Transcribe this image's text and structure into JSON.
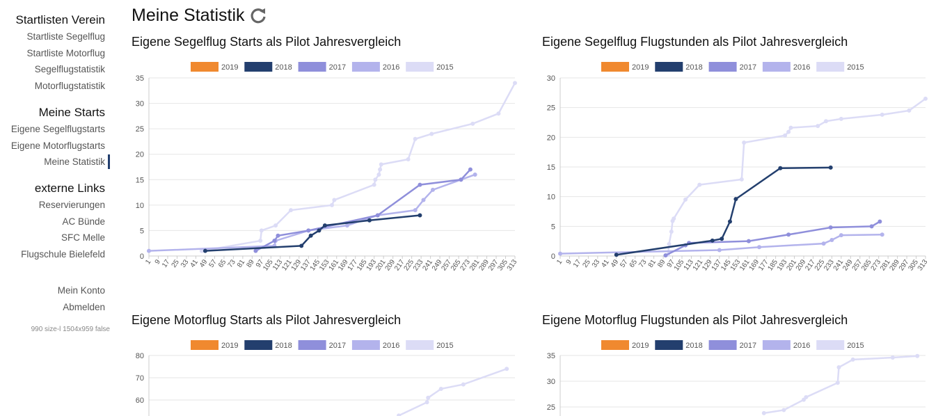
{
  "sidebar": {
    "sections": [
      {
        "heading": "Startlisten Verein",
        "links": [
          "Startliste Segelflug",
          "Startliste Motorflug",
          "Segelflugstatistik",
          "Motorflugstatistik"
        ]
      },
      {
        "heading": "Meine Starts",
        "links": [
          "Eigene Segelflugstarts",
          "Eigene Motorflugstarts",
          "Meine Statistik"
        ]
      },
      {
        "heading": "externe Links",
        "links": [
          "Reservierungen",
          "AC Bünde",
          "SFC Melle",
          "Flugschule Bielefeld"
        ]
      }
    ],
    "account_links": [
      "Mein Konto",
      "Abmelden"
    ],
    "footer": "990 size-l 1504x959 false"
  },
  "header": {
    "title": "Meine Statistik"
  },
  "chart_data": [
    {
      "type": "line",
      "title": "Eigene Segelflug Starts als Pilot Jahresvergleich",
      "grid": true,
      "xlim": [
        1,
        313
      ],
      "xticks": [
        1,
        9,
        17,
        25,
        33,
        41,
        49,
        57,
        65,
        73,
        81,
        89,
        97,
        105,
        113,
        121,
        129,
        137,
        145,
        153,
        161,
        169,
        177,
        185,
        193,
        201,
        209,
        217,
        225,
        233,
        241,
        249,
        257,
        265,
        273,
        281,
        289,
        297,
        305,
        313
      ],
      "ylim": [
        0,
        35
      ],
      "yticks": [
        0,
        5,
        10,
        15,
        20,
        25,
        30,
        35
      ],
      "series": [
        {
          "name": "2019",
          "color": "#f0892f",
          "x": [],
          "values": []
        },
        {
          "name": "2018",
          "color": "#233f6e",
          "x": [
            49,
            131,
            139,
            146,
            151,
            189,
            232
          ],
          "values": [
            1,
            2,
            4,
            5,
            6,
            7,
            8
          ]
        },
        {
          "name": "2017",
          "color": "#8f8fdb",
          "x": [
            92,
            108,
            111,
            137,
            196,
            232,
            267,
            275
          ],
          "values": [
            1,
            3,
            4,
            5,
            8,
            14,
            15,
            17
          ]
        },
        {
          "name": "2016",
          "color": "#b3b3ec",
          "x": [
            1,
            108,
            109,
            137,
            170,
            196,
            228,
            235,
            243,
            267,
            279
          ],
          "values": [
            1,
            2,
            3,
            5,
            6,
            8,
            9,
            11,
            13,
            15,
            16
          ]
        },
        {
          "name": "2015",
          "color": "#dcdcf6",
          "x": [
            46,
            96,
            97,
            109,
            122,
            157,
            159,
            193,
            194,
            197,
            198,
            199,
            222,
            228,
            242,
            277,
            299,
            313
          ],
          "values": [
            1,
            3,
            5,
            6,
            9,
            10,
            11,
            14,
            15,
            16,
            17,
            18,
            19,
            23,
            24,
            26,
            28,
            34
          ]
        }
      ]
    },
    {
      "type": "line",
      "title": "Eigene Segelflug Flugstunden als Pilot Jahresvergleich",
      "grid": true,
      "xlim": [
        1,
        313
      ],
      "xticks": [
        1,
        9,
        17,
        25,
        33,
        41,
        49,
        57,
        65,
        73,
        81,
        89,
        97,
        105,
        113,
        121,
        129,
        137,
        145,
        153,
        161,
        169,
        177,
        185,
        193,
        201,
        209,
        217,
        225,
        233,
        241,
        249,
        257,
        265,
        273,
        281,
        289,
        297,
        305,
        313
      ],
      "ylim": [
        0,
        30
      ],
      "yticks": [
        0,
        5,
        10,
        15,
        20,
        25,
        30
      ],
      "series": [
        {
          "name": "2019",
          "color": "#f0892f",
          "x": [],
          "values": []
        },
        {
          "name": "2018",
          "color": "#233f6e",
          "x": [
            49,
            131,
            139,
            146,
            151,
            189,
            232
          ],
          "values": [
            0.2,
            2.6,
            2.9,
            5.8,
            9.6,
            14.8,
            14.9
          ]
        },
        {
          "name": "2017",
          "color": "#8f8fdb",
          "x": [
            91,
            108,
            111,
            162,
            196,
            232,
            267,
            274
          ],
          "values": [
            0.1,
            1.8,
            2.2,
            2.5,
            3.6,
            4.8,
            5.0,
            5.8
          ]
        },
        {
          "name": "2016",
          "color": "#b3b3ec",
          "x": [
            1,
            137,
            171,
            226,
            233,
            241,
            276
          ],
          "values": [
            0.4,
            1.0,
            1.5,
            2.1,
            2.7,
            3.5,
            3.6
          ]
        },
        {
          "name": "2015",
          "color": "#dcdcf6",
          "x": [
            93,
            94,
            96,
            97,
            98,
            108,
            120,
            156,
            158,
            193,
            196,
            198,
            221,
            228,
            241,
            276,
            299,
            313
          ],
          "values": [
            0.2,
            2.0,
            4.1,
            5.9,
            6.3,
            9.5,
            12.0,
            12.9,
            19.1,
            20.3,
            20.9,
            21.6,
            21.9,
            22.7,
            23.1,
            23.8,
            24.5,
            26.5
          ]
        }
      ]
    },
    {
      "type": "line",
      "title": "Eigene Motorflug Starts als Pilot Jahresvergleich",
      "grid": true,
      "xlim": [
        1,
        313
      ],
      "ylim": [
        50,
        80
      ],
      "yticks": [
        60,
        70,
        80
      ],
      "series": [
        {
          "name": "2019",
          "color": "#f0892f",
          "x": [],
          "values": []
        },
        {
          "name": "2018",
          "color": "#233f6e",
          "x": [],
          "values": []
        },
        {
          "name": "2017",
          "color": "#8f8fdb",
          "x": [],
          "values": []
        },
        {
          "name": "2016",
          "color": "#b3b3ec",
          "x": [],
          "values": []
        },
        {
          "name": "2015",
          "color": "#dcdcf6",
          "x": [
            214,
            238,
            239,
            250,
            269,
            306
          ],
          "values": [
            53,
            59,
            61,
            65,
            67,
            74
          ]
        }
      ]
    },
    {
      "type": "line",
      "title": "Eigene Motorflug Flugstunden als Pilot Jahresvergleich",
      "grid": true,
      "xlim": [
        1,
        313
      ],
      "ylim": [
        20,
        35
      ],
      "yticks": [
        25,
        30,
        35
      ],
      "series": [
        {
          "name": "2019",
          "color": "#f0892f",
          "x": [],
          "values": []
        },
        {
          "name": "2018",
          "color": "#233f6e",
          "x": [],
          "values": []
        },
        {
          "name": "2017",
          "color": "#8f8fdb",
          "x": [],
          "values": []
        },
        {
          "name": "2016",
          "color": "#b3b3ec",
          "x": [],
          "values": []
        },
        {
          "name": "2015",
          "color": "#dcdcf6",
          "x": [
            175,
            192,
            209,
            211,
            238,
            239,
            251,
            285,
            306
          ],
          "values": [
            23.8,
            24.4,
            26.4,
            26.9,
            29.7,
            32.7,
            34.2,
            34.6,
            34.9
          ]
        }
      ]
    }
  ]
}
